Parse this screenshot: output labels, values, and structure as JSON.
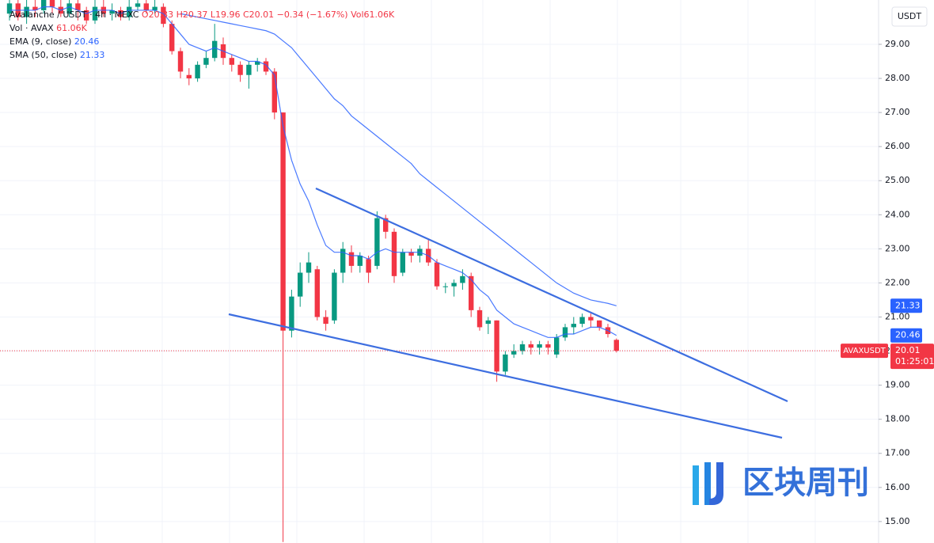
{
  "chart_data": {
    "type": "candlestick",
    "header": {
      "title": "Avalanche / USDT · 4h · MEXC",
      "open": "O20.33",
      "high": "H20.37",
      "low": "L19.96",
      "close": "C20.01",
      "change": "−0.34 (−1.67%)",
      "volume": "Vol61.06K"
    },
    "volume_legend": {
      "name": "Vol · AVAX",
      "value": "61.06K"
    },
    "open": [
      29.9,
      30.2,
      29.8,
      30.1,
      30.0,
      30.3,
      30.1,
      29.9,
      30.2,
      30.0,
      29.7,
      30.1,
      29.9,
      30.0,
      29.8,
      30.1,
      30.2,
      30.0,
      30.1,
      29.6,
      28.8,
      28.1,
      28.0,
      28.4,
      28.6,
      29.0,
      28.6,
      28.4,
      28.1,
      28.4,
      28.5,
      28.2,
      27.0,
      20.6,
      21.6,
      22.3,
      22.4,
      21.0,
      20.9,
      22.3,
      22.9,
      22.5,
      22.7,
      22.5,
      23.9,
      23.5,
      22.3,
      22.9,
      22.8,
      23.0,
      22.6,
      21.9,
      21.9,
      22.0,
      22.2,
      21.2,
      20.8,
      20.9,
      19.4,
      19.9,
      20.0,
      20.2,
      20.1,
      20.2,
      19.9,
      20.4,
      20.7,
      20.8,
      21.0,
      20.9,
      20.7,
      20.33
    ],
    "high": [
      30.4,
      30.3,
      30.3,
      30.3,
      30.4,
      30.4,
      30.3,
      30.4,
      30.3,
      30.1,
      30.3,
      30.3,
      30.2,
      30.1,
      30.3,
      30.4,
      30.4,
      30.4,
      30.2,
      29.7,
      28.9,
      28.3,
      28.5,
      28.8,
      29.6,
      29.2,
      28.7,
      28.5,
      28.5,
      28.6,
      28.6,
      28.3,
      27.0,
      21.8,
      22.6,
      22.9,
      22.5,
      21.2,
      22.4,
      23.2,
      23.1,
      22.9,
      22.8,
      24.1,
      24.0,
      23.6,
      23.0,
      23.0,
      23.1,
      23.3,
      22.7,
      22.0,
      22.1,
      22.4,
      22.3,
      21.3,
      21.0,
      20.9,
      20.0,
      20.2,
      20.3,
      20.3,
      20.3,
      20.3,
      20.5,
      20.8,
      21.0,
      21.1,
      21.1,
      20.9,
      20.8,
      20.37
    ],
    "low": [
      29.7,
      29.7,
      29.6,
      29.8,
      29.9,
      29.9,
      29.8,
      29.8,
      29.7,
      29.6,
      29.6,
      29.8,
      29.7,
      29.7,
      29.7,
      30.0,
      29.9,
      29.9,
      29.5,
      28.7,
      28.0,
      27.8,
      27.9,
      28.3,
      28.5,
      28.4,
      28.2,
      27.9,
      27.7,
      28.2,
      28.1,
      26.8,
      14.4,
      20.4,
      21.3,
      22.0,
      20.9,
      20.6,
      20.8,
      22.0,
      22.3,
      22.3,
      22.0,
      22.4,
      23.3,
      22.0,
      22.2,
      22.6,
      22.6,
      22.5,
      21.8,
      21.7,
      21.6,
      21.8,
      21.0,
      20.6,
      20.5,
      19.1,
      19.3,
      19.8,
      19.9,
      19.9,
      19.9,
      19.9,
      19.8,
      20.3,
      20.5,
      20.7,
      20.7,
      20.6,
      20.4,
      19.96
    ],
    "close": [
      30.2,
      29.8,
      30.1,
      30.0,
      30.3,
      30.1,
      29.9,
      30.2,
      30.0,
      29.7,
      30.1,
      29.9,
      30.0,
      29.8,
      30.1,
      30.2,
      30.0,
      30.1,
      29.6,
      28.8,
      28.2,
      28.0,
      28.4,
      28.6,
      29.1,
      28.6,
      28.4,
      28.1,
      28.4,
      28.5,
      28.2,
      27.0,
      20.6,
      21.6,
      22.3,
      22.6,
      21.0,
      20.8,
      22.3,
      23.0,
      22.5,
      22.8,
      22.3,
      23.9,
      23.5,
      22.2,
      22.9,
      22.8,
      23.0,
      22.6,
      21.9,
      21.9,
      22.0,
      22.2,
      21.2,
      20.7,
      20.9,
      19.4,
      19.9,
      20.0,
      20.2,
      20.1,
      20.2,
      20.1,
      20.4,
      20.7,
      20.8,
      21.0,
      20.9,
      20.7,
      20.5,
      20.01
    ],
    "up_color": "#089981",
    "down_color": "#f23645",
    "series": [
      {
        "name": "EMA (9, close)",
        "color": "#2962ff",
        "last_value": 20.46,
        "values": [
          30.0,
          30.0,
          30.0,
          30.0,
          30.1,
          30.1,
          30.0,
          30.1,
          30.0,
          29.9,
          30.0,
          30.0,
          30.0,
          29.9,
          30.0,
          30.0,
          30.0,
          30.0,
          29.9,
          29.6,
          29.3,
          29.0,
          28.9,
          28.8,
          28.9,
          28.8,
          28.7,
          28.6,
          28.5,
          28.5,
          28.4,
          28.1,
          26.6,
          25.6,
          24.9,
          24.4,
          23.7,
          23.1,
          22.9,
          22.9,
          22.8,
          22.8,
          22.7,
          22.9,
          23.0,
          22.9,
          22.9,
          22.9,
          22.9,
          22.8,
          22.6,
          22.5,
          22.4,
          22.3,
          22.1,
          21.8,
          21.6,
          21.2,
          21.0,
          20.8,
          20.7,
          20.6,
          20.5,
          20.4,
          20.4,
          20.5,
          20.5,
          20.6,
          20.7,
          20.7,
          20.6,
          20.46
        ]
      },
      {
        "name": "SMA (50, close)",
        "color": "#2962ff",
        "last_value": 21.33,
        "values": [
          null,
          null,
          null,
          null,
          null,
          null,
          null,
          null,
          null,
          null,
          null,
          null,
          null,
          null,
          null,
          null,
          null,
          null,
          null,
          null,
          29.9,
          29.85,
          29.8,
          29.75,
          29.7,
          29.65,
          29.6,
          29.55,
          29.5,
          29.45,
          29.4,
          29.3,
          29.1,
          28.9,
          28.6,
          28.3,
          28.0,
          27.7,
          27.4,
          27.2,
          26.9,
          26.7,
          26.5,
          26.3,
          26.1,
          25.9,
          25.7,
          25.5,
          25.2,
          25.0,
          24.8,
          24.6,
          24.4,
          24.2,
          24.0,
          23.8,
          23.6,
          23.4,
          23.2,
          23.0,
          22.8,
          22.6,
          22.4,
          22.2,
          22.0,
          21.85,
          21.7,
          21.6,
          21.5,
          21.45,
          21.4,
          21.33
        ]
      }
    ],
    "last_price": 20.01,
    "symbol_tag": "AVAXUSDT",
    "countdown": "01:25:01",
    "axis_unit": "USDT",
    "ylim": [
      14.37,
      30.3
    ],
    "yticks": [
      {
        "value": 15,
        "label": "15.00"
      },
      {
        "value": 16,
        "label": "16.00"
      },
      {
        "value": 17,
        "label": "17.00"
      },
      {
        "value": 18,
        "label": "18.00"
      },
      {
        "value": 19,
        "label": "19.00"
      },
      {
        "value": 20,
        "label": "20.00"
      },
      {
        "value": 21,
        "label": "21.00"
      },
      {
        "value": 22,
        "label": "22.00"
      },
      {
        "value": 23,
        "label": "23.00"
      },
      {
        "value": 24,
        "label": "24.00"
      },
      {
        "value": 25,
        "label": "25.00"
      },
      {
        "value": 26,
        "label": "26.00"
      },
      {
        "value": 27,
        "label": "27.00"
      },
      {
        "value": 28,
        "label": "28.00"
      },
      {
        "value": 29,
        "label": "29.00"
      }
    ],
    "grid": true,
    "watermark": "区块周刊"
  }
}
